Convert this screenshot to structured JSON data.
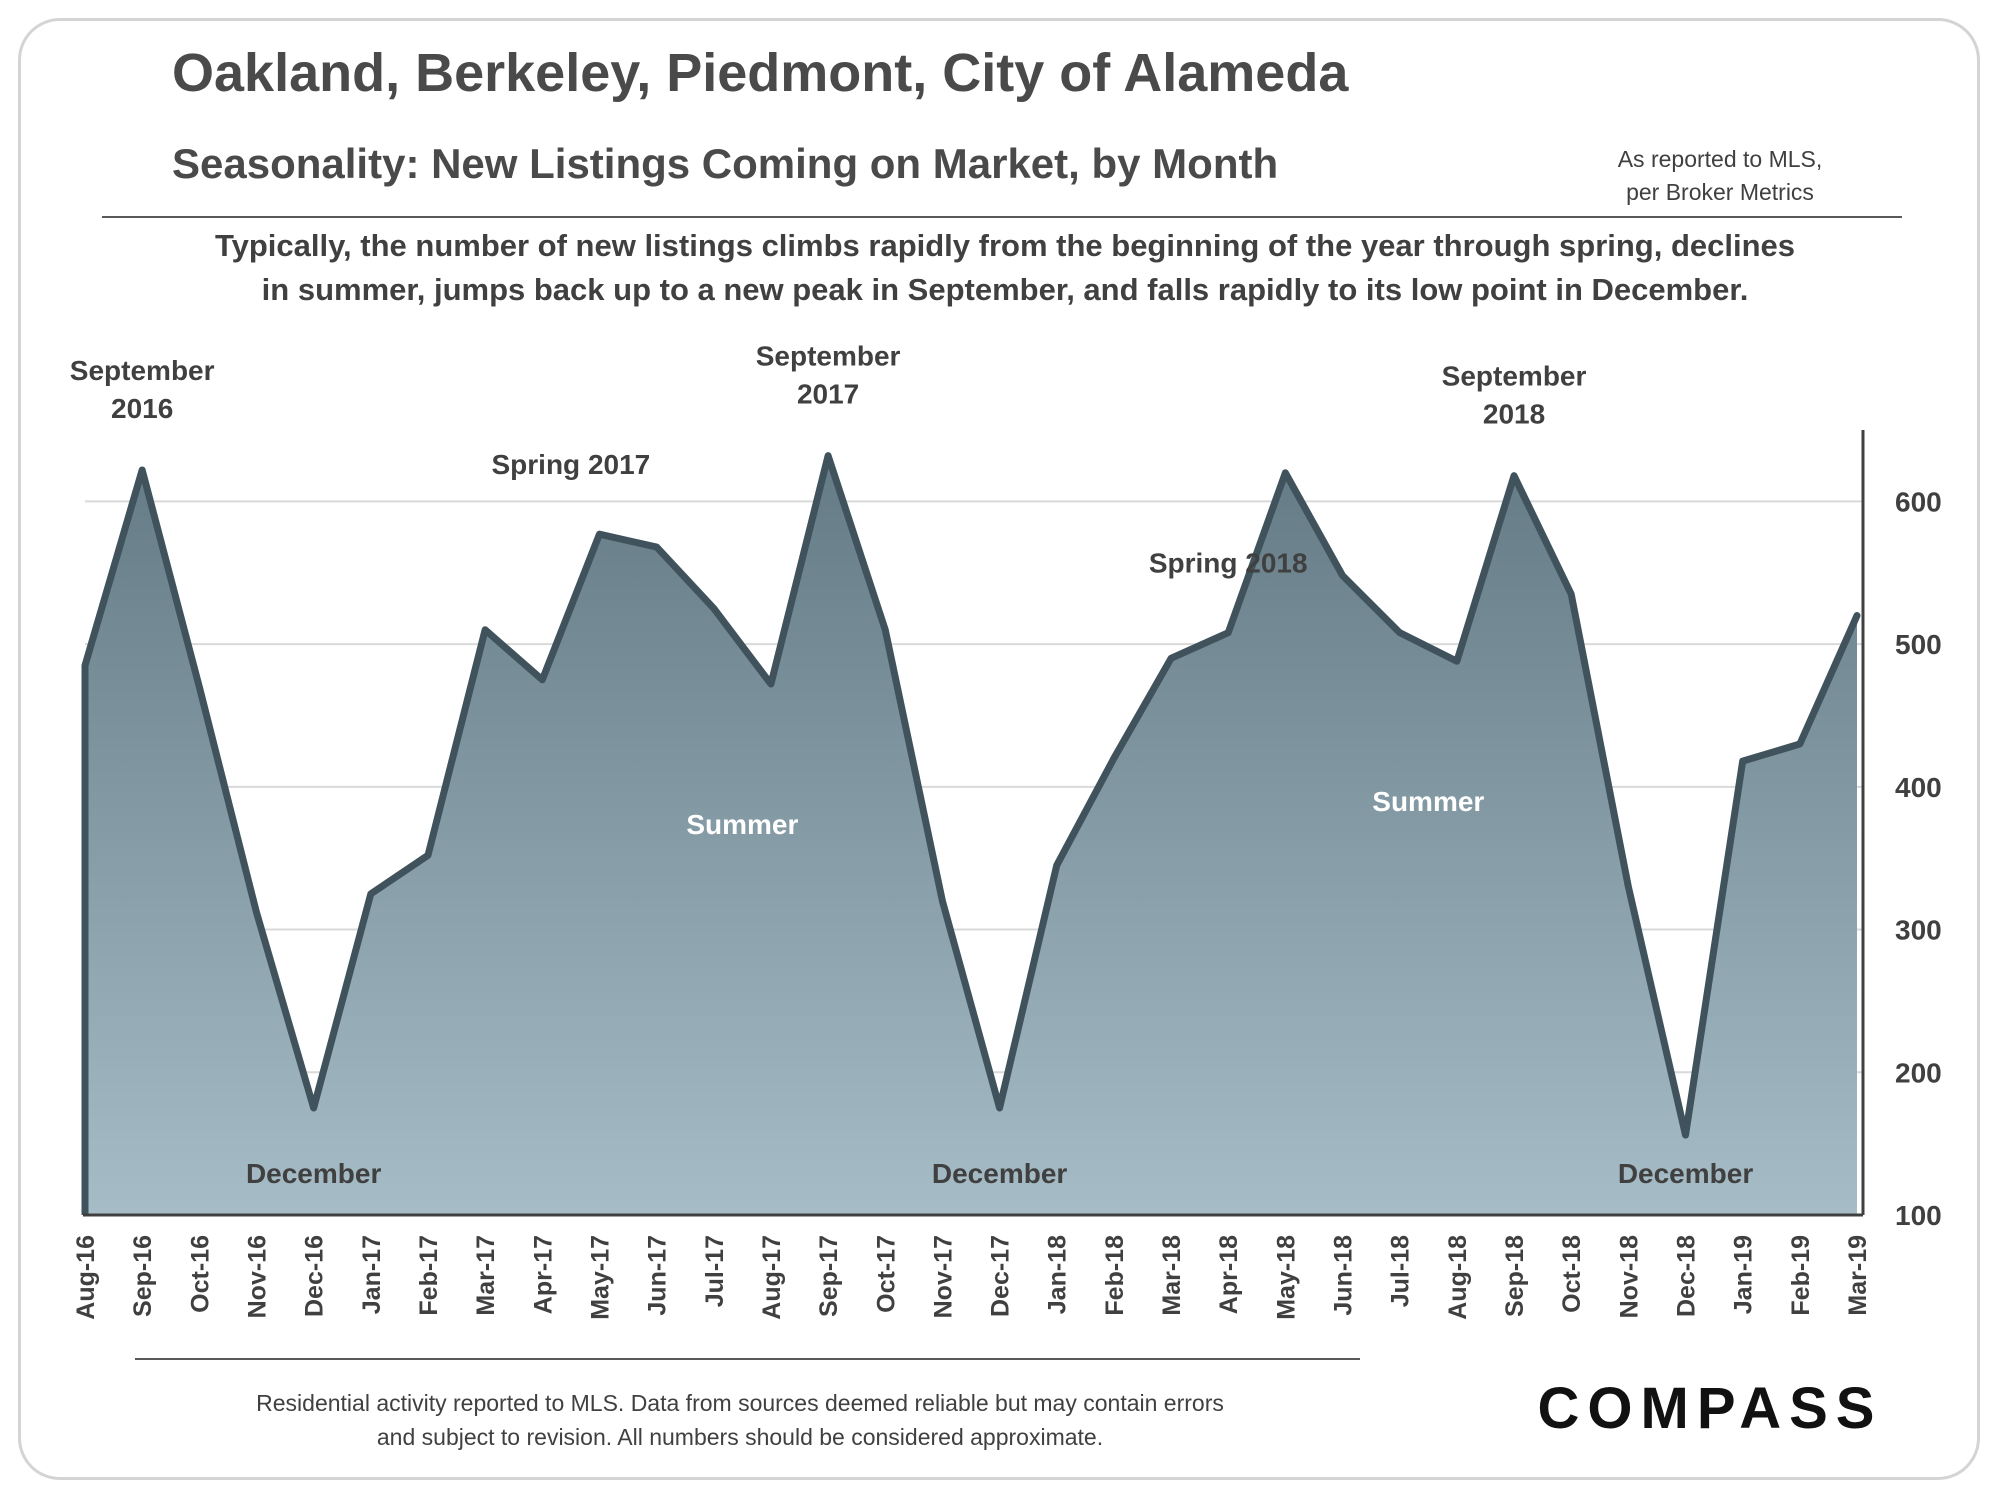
{
  "header": {
    "title": "Oakland, Berkeley, Piedmont, City of Alameda",
    "subtitle": "Seasonality: New Listings Coming on Market, by Month",
    "source_line1": "As reported to MLS,",
    "source_line2": "per Broker Metrics"
  },
  "description": {
    "line1": "Typically,  the number of new listings climbs rapidly from the beginning of the year through spring, declines",
    "line2": "in summer, jumps back up to a new peak in September, and falls rapidly to its low point in December."
  },
  "chart_data": {
    "type": "area",
    "categories": [
      "Aug-16",
      "Sep-16",
      "Oct-16",
      "Nov-16",
      "Dec-16",
      "Jan-17",
      "Feb-17",
      "Mar-17",
      "Apr-17",
      "May-17",
      "Jun-17",
      "Jul-17",
      "Aug-17",
      "Sep-17",
      "Oct-17",
      "Nov-17",
      "Dec-17",
      "Jan-18",
      "Feb-18",
      "Mar-18",
      "Apr-18",
      "May-18",
      "Jun-18",
      "Jul-18",
      "Aug-18",
      "Sep-18",
      "Oct-18",
      "Nov-18",
      "Dec-18",
      "Jan-19",
      "Feb-19",
      "Mar-19"
    ],
    "values": [
      485,
      622,
      470,
      312,
      175,
      325,
      352,
      510,
      475,
      577,
      568,
      525,
      472,
      632,
      510,
      320,
      175,
      345,
      420,
      490,
      508,
      620,
      548,
      508,
      488,
      618,
      535,
      330,
      156,
      418,
      430,
      520
    ],
    "ylim": [
      100,
      650
    ],
    "yticks": [
      100,
      200,
      300,
      400,
      500,
      600
    ],
    "y_axis_side": "right",
    "grid": true,
    "colors": {
      "fill_top": "#647a84",
      "fill_bottom": "#a6bcc6",
      "line": "#40535c",
      "grid": "#d9d9d9"
    },
    "annotations": [
      {
        "id": "sep-2016",
        "index": 1,
        "lines": [
          "September",
          "2016"
        ],
        "color": "#404040",
        "position": "above"
      },
      {
        "id": "spring-2017",
        "index": 8.5,
        "lines": [
          "Spring 2017"
        ],
        "color": "#404040",
        "position": "above"
      },
      {
        "id": "sep-2017",
        "index": 13,
        "lines": [
          "September",
          "2017"
        ],
        "color": "#404040",
        "position": "above"
      },
      {
        "id": "spring-2018",
        "index": 20,
        "lines": [
          "Spring 2018"
        ],
        "color": "#404040",
        "position": "above"
      },
      {
        "id": "sep-2018",
        "index": 25,
        "lines": [
          "September",
          "2018"
        ],
        "color": "#404040",
        "position": "above"
      },
      {
        "id": "summer-2017",
        "index": 11.5,
        "lines": [
          "Summer"
        ],
        "color": "#ffffff",
        "position": "inside"
      },
      {
        "id": "summer-2018",
        "index": 23.5,
        "lines": [
          "Summer"
        ],
        "color": "#ffffff",
        "position": "inside"
      },
      {
        "id": "dec-2016",
        "index": 4,
        "lines": [
          "December"
        ],
        "color": "#404040",
        "position": "bottom"
      },
      {
        "id": "dec-2017",
        "index": 16,
        "lines": [
          "December"
        ],
        "color": "#404040",
        "position": "bottom"
      },
      {
        "id": "dec-2018",
        "index": 28,
        "lines": [
          "December"
        ],
        "color": "#404040",
        "position": "bottom"
      }
    ]
  },
  "footer": {
    "note_line1": "Residential activity reported to MLS. Data from sources deemed reliable but may contain errors",
    "note_line2": "and subject to revision. All numbers should be considered approximate.",
    "logo_text": "COMPASS"
  }
}
